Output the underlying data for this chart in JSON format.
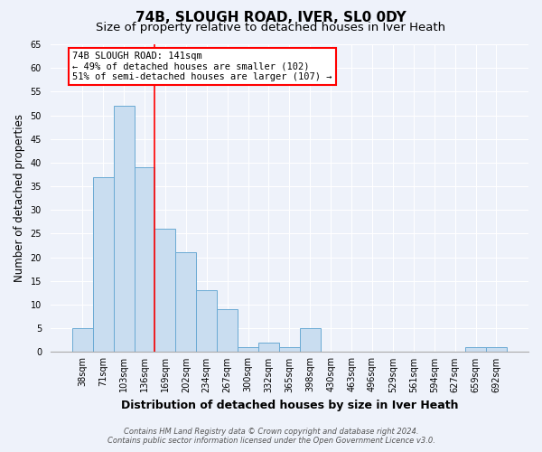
{
  "title": "74B, SLOUGH ROAD, IVER, SL0 0DY",
  "subtitle": "Size of property relative to detached houses in Iver Heath",
  "xlabel": "Distribution of detached houses by size in Iver Heath",
  "ylabel": "Number of detached properties",
  "bins": [
    "38sqm",
    "71sqm",
    "103sqm",
    "136sqm",
    "169sqm",
    "202sqm",
    "234sqm",
    "267sqm",
    "300sqm",
    "332sqm",
    "365sqm",
    "398sqm",
    "430sqm",
    "463sqm",
    "496sqm",
    "529sqm",
    "561sqm",
    "594sqm",
    "627sqm",
    "659sqm",
    "692sqm"
  ],
  "values": [
    5,
    37,
    52,
    39,
    26,
    21,
    13,
    9,
    1,
    2,
    1,
    5,
    0,
    0,
    0,
    0,
    0,
    0,
    0,
    1,
    1
  ],
  "bar_color": "#c9ddf0",
  "bar_edge_color": "#6aaad4",
  "red_line_bin_index": 3,
  "annotation_text1": "74B SLOUGH ROAD: 141sqm",
  "annotation_text2": "← 49% of detached houses are smaller (102)",
  "annotation_text3": "51% of semi-detached houses are larger (107) →",
  "annotation_box_color": "white",
  "annotation_box_edge_color": "red",
  "footnote1": "Contains HM Land Registry data © Crown copyright and database right 2024.",
  "footnote2": "Contains public sector information licensed under the Open Government Licence v3.0.",
  "ylim_max": 65,
  "ytick_step": 5,
  "background_color": "#eef2fa",
  "grid_color": "#ffffff",
  "title_fontsize": 11,
  "subtitle_fontsize": 9.5,
  "xlabel_fontsize": 9,
  "ylabel_fontsize": 8.5,
  "tick_fontsize": 7,
  "footnote_fontsize": 6,
  "annot_fontsize": 7.5
}
